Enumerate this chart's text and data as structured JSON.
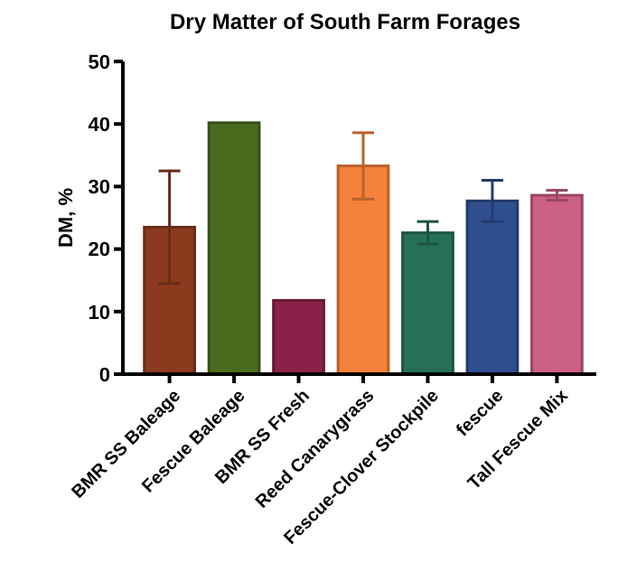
{
  "chart_data": {
    "type": "bar",
    "title": "Dry Matter of South Farm Forages",
    "ylabel": "DM, %",
    "categories": [
      "BMR SS Baleage",
      "Fescue Baleage",
      "BMR SS Fresh",
      "Reed Canarygrass",
      "Fescue-Clover Stockpile",
      "fescue",
      "Tall Fescue Mix"
    ],
    "values": [
      23.5,
      40.2,
      11.8,
      33.3,
      22.6,
      27.7,
      28.6
    ],
    "errors": [
      9,
      null,
      null,
      5.3,
      1.8,
      3.3,
      0.8
    ],
    "colors": [
      "#8b3a1e",
      "#4a6a1e",
      "#8b2148",
      "#f5813a",
      "#26705a",
      "#2e4e8e",
      "#cc5f86"
    ],
    "ylim": [
      0,
      50
    ],
    "yticks": [
      0,
      10,
      20,
      30,
      40,
      50
    ],
    "grid": false
  }
}
